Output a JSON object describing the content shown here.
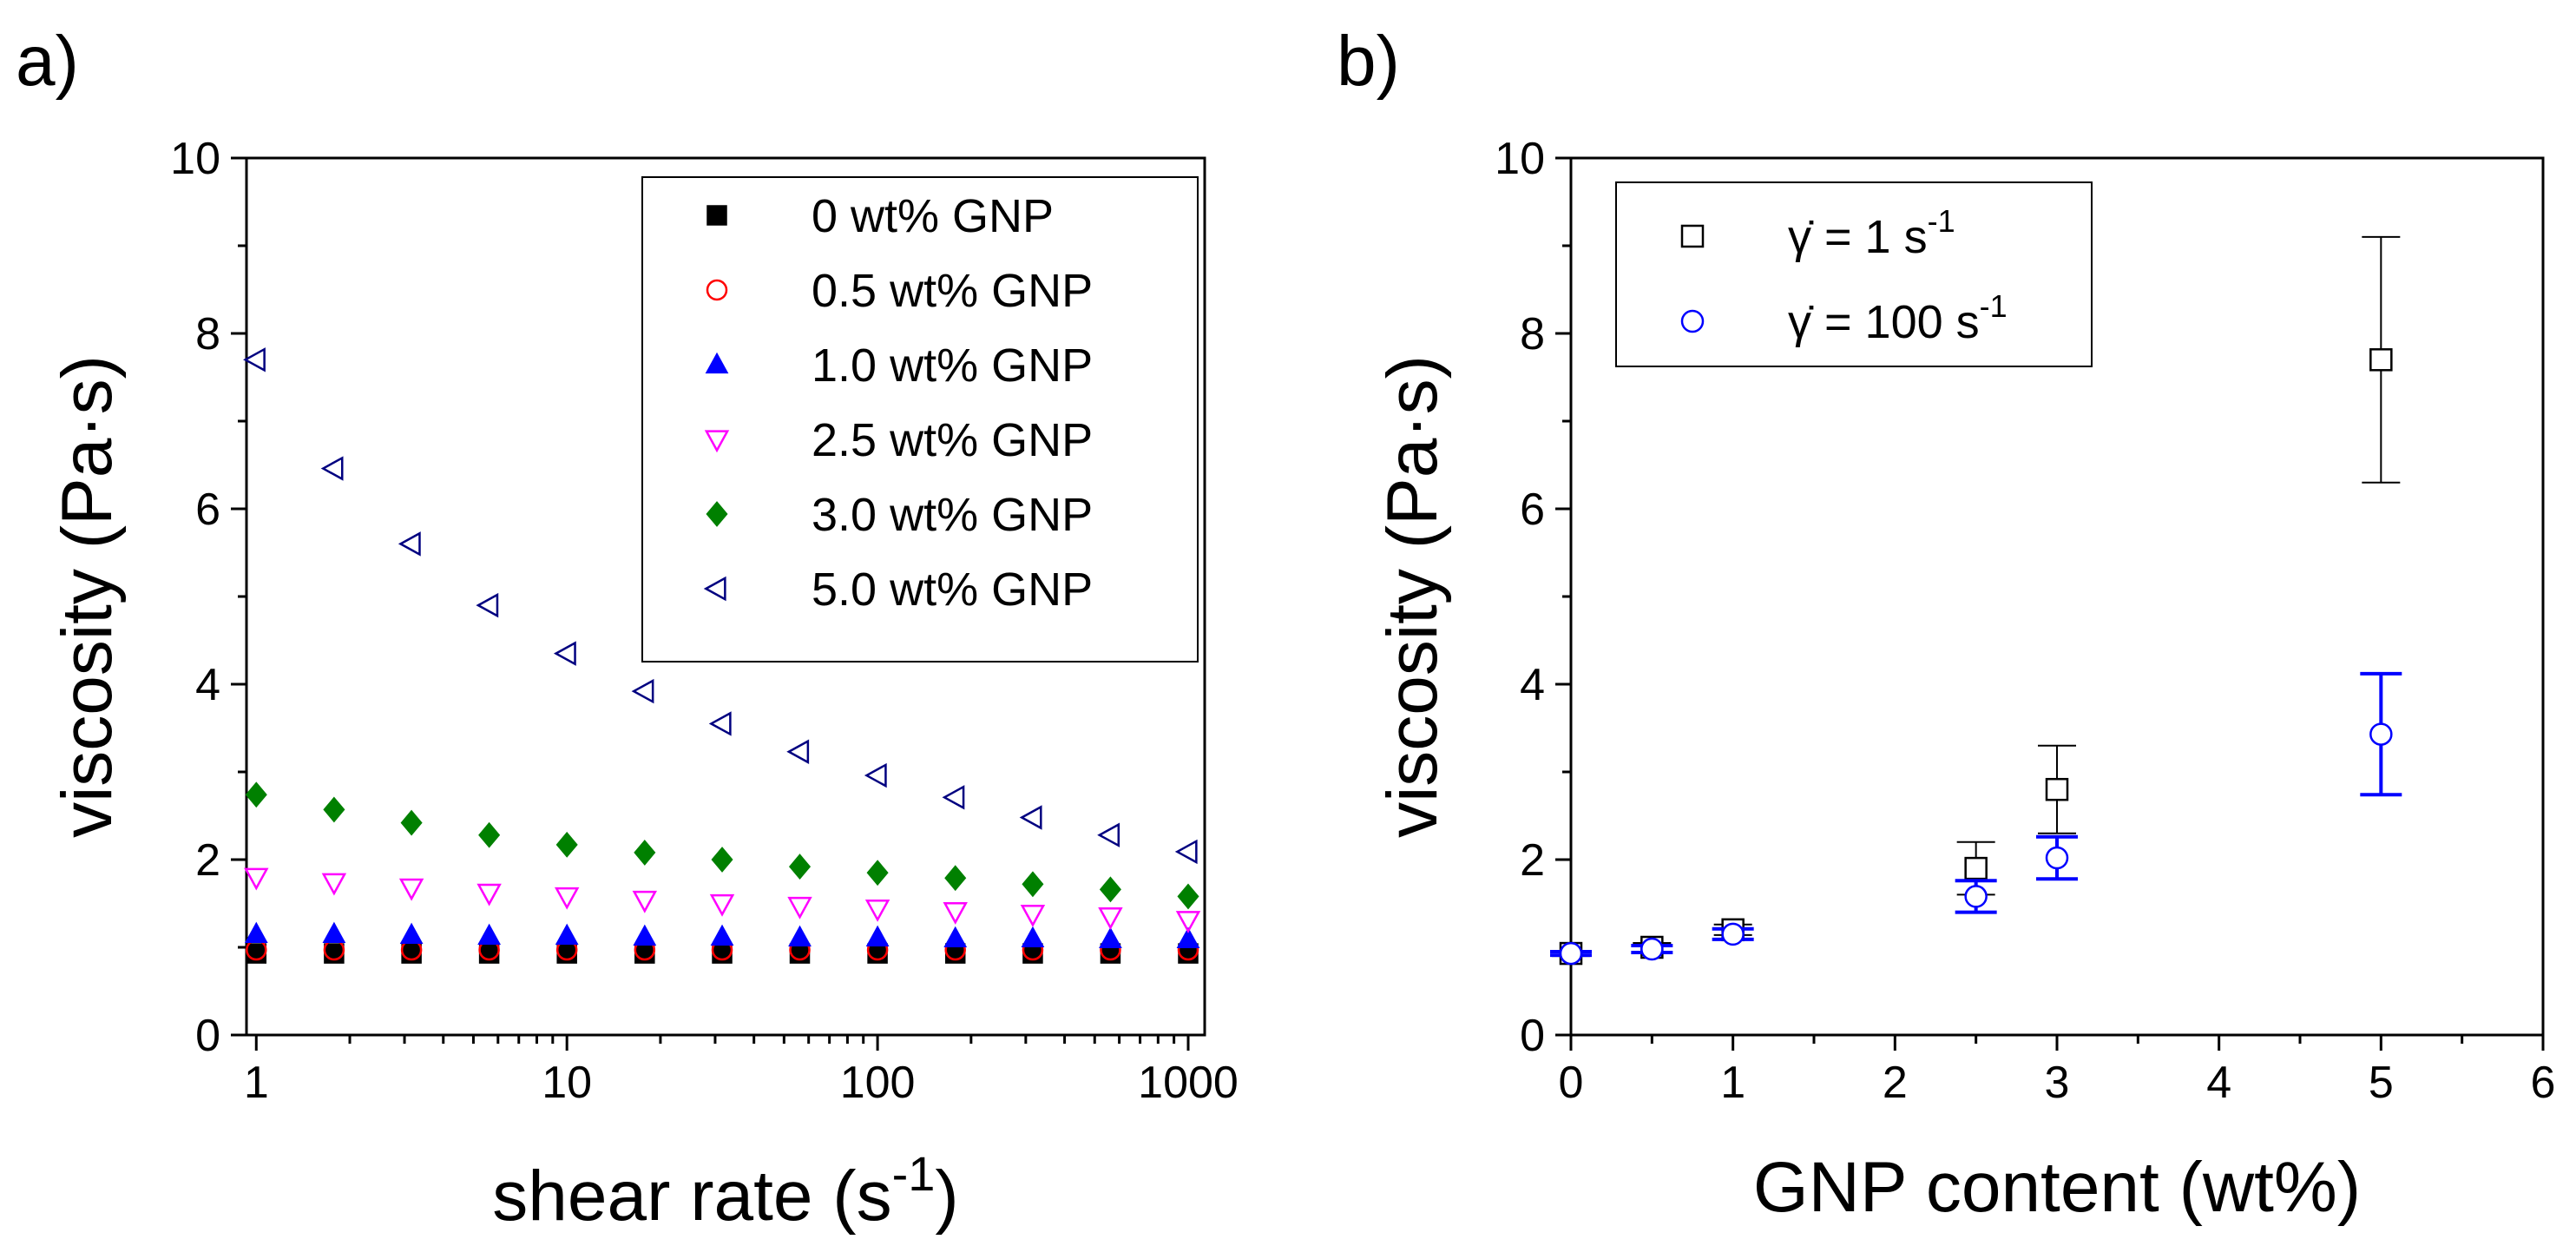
{
  "chart_data": [
    {
      "panel": "a)",
      "type": "scatter",
      "xscale": "log",
      "xlabel": "shear rate (s",
      "xlabel_sup": "-1",
      "xlabel_end": ")",
      "ylabel": "viscosity (Pa·s)",
      "xlim": [
        0.93,
        1130
      ],
      "ylim": [
        0,
        10
      ],
      "xticks": [
        1,
        10,
        100,
        1000
      ],
      "xtick_labels": [
        "1",
        "10",
        "100",
        "1000"
      ],
      "yticks": [
        0,
        2,
        4,
        6,
        8,
        10
      ],
      "ytick_labels": [
        "0",
        "2",
        "4",
        "6",
        "8",
        "10"
      ],
      "legend_position": "top-right",
      "x": [
        1,
        1.78,
        3.16,
        5.62,
        10,
        17.8,
        31.6,
        56.2,
        100,
        178,
        316,
        562,
        1000
      ],
      "series": [
        {
          "name": "0 wt% GNP",
          "marker": "square-filled",
          "color": "#000000",
          "values": [
            0.93,
            0.93,
            0.93,
            0.93,
            0.93,
            0.93,
            0.93,
            0.93,
            0.93,
            0.93,
            0.93,
            0.93,
            0.93
          ]
        },
        {
          "name": "0.5 wt% GNP",
          "marker": "circle-open",
          "color": "#ff0000",
          "values": [
            0.97,
            0.97,
            0.97,
            0.97,
            0.97,
            0.97,
            0.97,
            0.97,
            0.97,
            0.97,
            0.97,
            0.97,
            0.97
          ]
        },
        {
          "name": "1.0 wt% GNP",
          "marker": "triangle-up-filled",
          "color": "#0000ff",
          "values": [
            1.15,
            1.15,
            1.14,
            1.13,
            1.13,
            1.12,
            1.12,
            1.11,
            1.11,
            1.1,
            1.1,
            1.09,
            1.09
          ]
        },
        {
          "name": "2.5 wt% GNP",
          "marker": "triangle-down-open",
          "color": "#ff00ff",
          "values": [
            1.8,
            1.74,
            1.68,
            1.62,
            1.58,
            1.54,
            1.5,
            1.47,
            1.44,
            1.41,
            1.38,
            1.35,
            1.31
          ]
        },
        {
          "name": "3.0 wt% GNP",
          "marker": "diamond-filled",
          "color": "#008000",
          "values": [
            2.74,
            2.57,
            2.42,
            2.28,
            2.17,
            2.08,
            2.0,
            1.92,
            1.85,
            1.79,
            1.72,
            1.66,
            1.58
          ]
        },
        {
          "name": "5.0 wt% GNP",
          "marker": "triangle-left-open",
          "color": "#000080",
          "values": [
            7.7,
            6.46,
            5.6,
            4.9,
            4.35,
            3.92,
            3.55,
            3.23,
            2.96,
            2.71,
            2.48,
            2.28,
            2.09
          ]
        }
      ]
    },
    {
      "panel": "b)",
      "type": "scatter",
      "xlabel": "GNP content (wt%)",
      "ylabel": "viscosity (Pa·s)",
      "xlim": [
        0,
        6
      ],
      "ylim": [
        0,
        10
      ],
      "xticks": [
        0,
        1,
        2,
        3,
        4,
        5,
        6
      ],
      "xtick_labels": [
        "0",
        "1",
        "2",
        "3",
        "4",
        "5",
        "6"
      ],
      "yticks": [
        0,
        2,
        4,
        6,
        8,
        10
      ],
      "ytick_labels": [
        "0",
        "2",
        "4",
        "6",
        "8",
        "10"
      ],
      "legend_position": "top-left",
      "x": [
        0,
        0.5,
        1.0,
        2.5,
        3.0,
        5.0
      ],
      "series": [
        {
          "name_pre": "γ̇ = 1 s",
          "name_sup": "-1",
          "marker": "square-open",
          "color": "#000000",
          "values": [
            0.93,
            1.0,
            1.2,
            1.9,
            2.8,
            7.7
          ],
          "errors": [
            0.03,
            0.05,
            0.06,
            0.3,
            0.5,
            1.4
          ]
        },
        {
          "name_pre": "γ̇ = 100 s",
          "name_sup": "-1",
          "marker": "circle-open",
          "color": "#0000ff",
          "values": [
            0.93,
            0.98,
            1.15,
            1.58,
            2.02,
            3.43
          ],
          "errors": [
            0.02,
            0.04,
            0.06,
            0.18,
            0.24,
            0.69
          ]
        }
      ]
    }
  ]
}
